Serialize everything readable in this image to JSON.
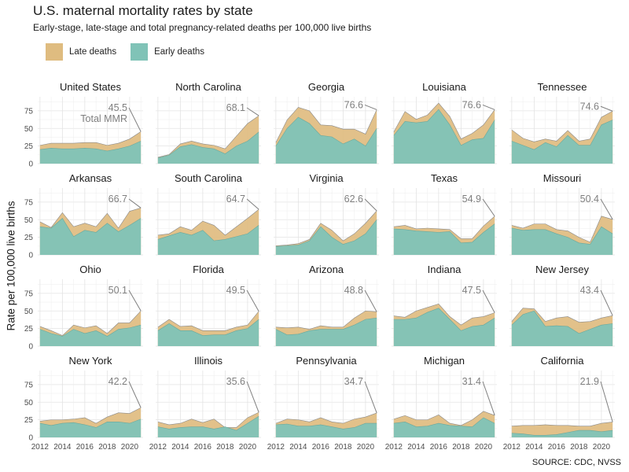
{
  "chart_data": {
    "type": "area",
    "title": "U.S. maternal mortality rates by state",
    "subtitle": "Early-stage, late-stage and total pregnancy-related deaths per 100,000 live births",
    "ylabel": "Rate per 100,000 live births",
    "source": "SOURCE: CDC, NVSS",
    "legend": [
      {
        "name": "Late deaths",
        "color": "#dfbc80"
      },
      {
        "name": "Early deaths",
        "color": "#80c3b7"
      }
    ],
    "x": [
      2012,
      2013,
      2014,
      2015,
      2016,
      2017,
      2018,
      2019,
      2020,
      2021
    ],
    "xticks": [
      2012,
      2014,
      2016,
      2018,
      2020
    ],
    "yticks": [
      0,
      25,
      50,
      75
    ],
    "ylim": [
      0,
      95
    ],
    "total_annotation_extra": "Total MMR",
    "panels": [
      {
        "state": "United States",
        "label": "45.5",
        "early": [
          20,
          22,
          21,
          21,
          22,
          21,
          18,
          21,
          25,
          32
        ],
        "total": [
          26,
          29,
          29,
          29,
          30,
          30,
          26,
          29,
          35,
          45.5
        ]
      },
      {
        "state": "North Carolina",
        "label": "68.1",
        "early": [
          8,
          12,
          24,
          27,
          23,
          21,
          14,
          25,
          32,
          45
        ],
        "total": [
          9,
          13,
          28,
          32,
          28,
          26,
          21,
          39,
          57,
          68.1
        ]
      },
      {
        "state": "Georgia",
        "label": "76.6",
        "early": [
          25,
          50,
          66,
          57,
          40,
          38,
          28,
          35,
          25,
          50
        ],
        "total": [
          30,
          62,
          80,
          75,
          55,
          54,
          49,
          49,
          42,
          76.6
        ]
      },
      {
        "state": "Louisiana",
        "label": "76.6",
        "early": [
          40,
          60,
          58,
          60,
          77,
          55,
          26,
          34,
          36,
          62
        ],
        "total": [
          45,
          74,
          63,
          69,
          86,
          67,
          35,
          43,
          55,
          76.6
        ]
      },
      {
        "state": "Tennessee",
        "label": "74.6",
        "early": [
          32,
          26,
          20,
          30,
          24,
          40,
          26,
          26,
          55,
          62
        ],
        "total": [
          48,
          36,
          31,
          35,
          32,
          47,
          32,
          35,
          66,
          74.6
        ]
      },
      {
        "state": "Arkansas",
        "label": "66.7",
        "early": [
          40,
          38,
          52,
          26,
          35,
          32,
          45,
          33,
          42,
          52
        ],
        "total": [
          47,
          39,
          60,
          40,
          45,
          40,
          59,
          38,
          62,
          66.7
        ]
      },
      {
        "state": "South Carolina",
        "label": "64.7",
        "early": [
          22,
          27,
          32,
          28,
          35,
          20,
          22,
          26,
          30,
          42
        ],
        "total": [
          28,
          30,
          40,
          35,
          48,
          42,
          28,
          40,
          52,
          64.7
        ]
      },
      {
        "state": "Virginia",
        "label": "62.6",
        "early": [
          12,
          13,
          14,
          20,
          40,
          25,
          15,
          20,
          30,
          50
        ],
        "total": [
          13,
          14,
          16,
          22,
          45,
          35,
          20,
          30,
          45,
          62.6
        ]
      },
      {
        "state": "Texas",
        "label": "54.9",
        "early": [
          37,
          36,
          34,
          33,
          32,
          33,
          17,
          18,
          32,
          44
        ],
        "total": [
          40,
          42,
          37,
          38,
          37,
          36,
          23,
          23,
          41,
          54.9
        ]
      },
      {
        "state": "Missouri",
        "label": "50.4",
        "early": [
          38,
          35,
          36,
          36,
          30,
          25,
          17,
          15,
          40,
          30
        ],
        "total": [
          42,
          38,
          44,
          44,
          36,
          34,
          25,
          18,
          55,
          50.4
        ]
      },
      {
        "state": "Ohio",
        "label": "50.1",
        "early": [
          24,
          18,
          14,
          24,
          18,
          22,
          14,
          24,
          26,
          30
        ],
        "total": [
          28,
          22,
          15,
          30,
          26,
          29,
          18,
          33,
          33,
          50.1
        ]
      },
      {
        "state": "Florida",
        "label": "49.5",
        "early": [
          22,
          32,
          22,
          22,
          15,
          16,
          16,
          22,
          25,
          38
        ],
        "total": [
          27,
          38,
          28,
          29,
          22,
          22,
          22,
          27,
          30,
          49.5
        ]
      },
      {
        "state": "Arizona",
        "label": "48.8",
        "early": [
          24,
          16,
          17,
          22,
          24,
          24,
          24,
          30,
          38,
          40
        ],
        "total": [
          27,
          26,
          27,
          24,
          29,
          27,
          27,
          40,
          50,
          48.8
        ]
      },
      {
        "state": "Indiana",
        "label": "47.5",
        "early": [
          38,
          38,
          40,
          48,
          54,
          38,
          22,
          28,
          30,
          40
        ],
        "total": [
          43,
          41,
          50,
          55,
          60,
          42,
          30,
          40,
          42,
          47.5
        ]
      },
      {
        "state": "New Jersey",
        "label": "43.4",
        "early": [
          30,
          45,
          50,
          28,
          29,
          28,
          18,
          24,
          30,
          32
        ],
        "total": [
          35,
          54,
          53,
          35,
          40,
          42,
          34,
          35,
          40,
          43.4
        ]
      },
      {
        "state": "New York",
        "label": "42.2",
        "early": [
          20,
          17,
          20,
          21,
          18,
          14,
          22,
          22,
          20,
          26
        ],
        "total": [
          23,
          25,
          25,
          26,
          28,
          20,
          29,
          35,
          34,
          42.2
        ]
      },
      {
        "state": "Illinois",
        "label": "35.6",
        "early": [
          15,
          12,
          14,
          15,
          15,
          12,
          15,
          10,
          20,
          30
        ],
        "total": [
          22,
          18,
          20,
          26,
          21,
          26,
          14,
          14,
          28,
          35.6
        ]
      },
      {
        "state": "Pennsylvania",
        "label": "34.7",
        "early": [
          18,
          19,
          16,
          16,
          18,
          15,
          12,
          14,
          20,
          20
        ],
        "total": [
          20,
          26,
          25,
          22,
          28,
          22,
          20,
          26,
          29,
          34.7
        ]
      },
      {
        "state": "Michigan",
        "label": "31.4",
        "early": [
          20,
          22,
          15,
          16,
          20,
          17,
          16,
          15,
          28,
          20
        ],
        "total": [
          26,
          31,
          25,
          25,
          32,
          20,
          17,
          25,
          37,
          31.4
        ]
      },
      {
        "state": "California",
        "label": "21.9",
        "early": [
          6,
          5,
          3,
          3,
          4,
          7,
          10,
          10,
          8,
          10
        ],
        "total": [
          16,
          17,
          17,
          18,
          17,
          17,
          16,
          16,
          20,
          21.9
        ]
      }
    ]
  }
}
